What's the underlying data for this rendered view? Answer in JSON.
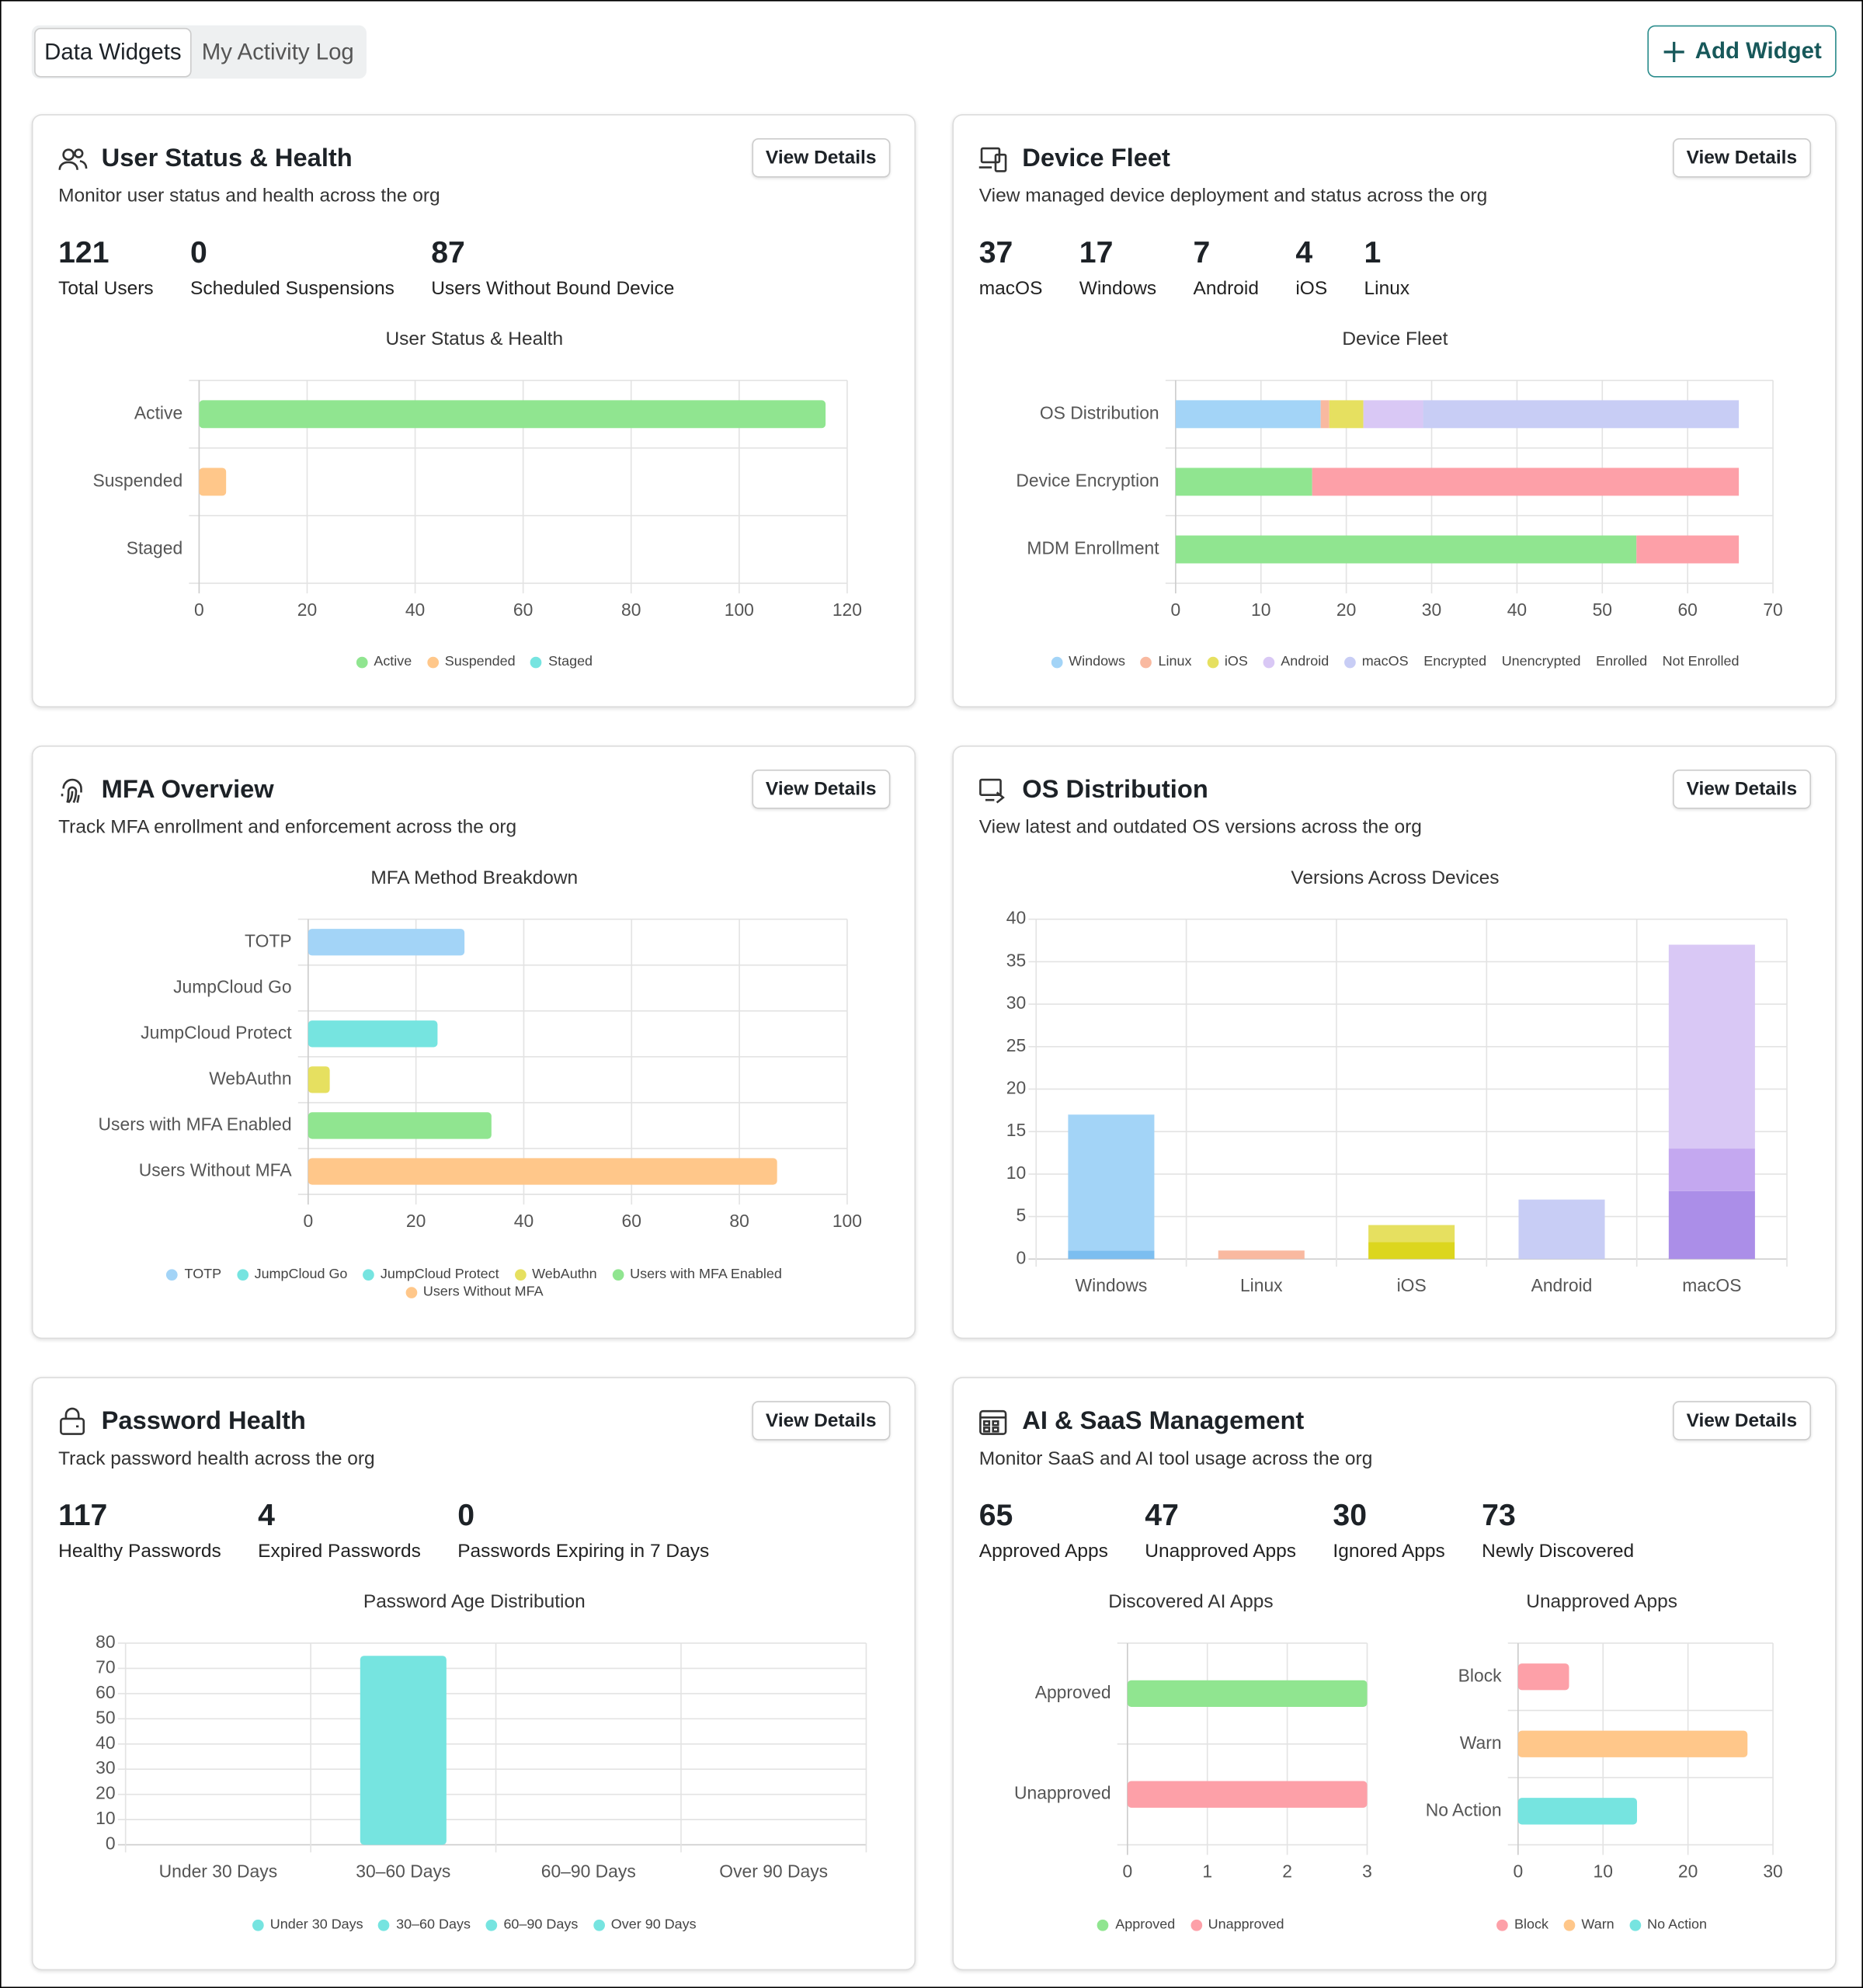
{
  "tabs": [
    "Data Widgets",
    "My Activity Log"
  ],
  "active_tab": 0,
  "add_widget": "Add Widget",
  "widgets": [
    {
      "title": "User Status & Health",
      "subtitle": "Monitor user status and health across the org",
      "action": "View Details",
      "stats": [
        {
          "value": 121,
          "label": "Total Users"
        },
        {
          "value": 0,
          "label": "Scheduled Suspensions"
        },
        {
          "value": 87,
          "label": "Users Without Bound Device"
        }
      ],
      "charts": [
        {
          "type": "bar",
          "orientation": "horizontal",
          "title": "User Status & Health",
          "categories": [
            "Active",
            "Suspended",
            "Staged"
          ],
          "values": [
            116,
            5,
            0
          ],
          "colors": [
            "#90e590",
            "#ffc78a",
            "#76e4e0"
          ],
          "xlim": [
            0,
            120
          ],
          "xticks": [
            0,
            20,
            40,
            60,
            80,
            100,
            120
          ],
          "legend": true
        }
      ]
    },
    {
      "title": "Device Fleet",
      "subtitle": "View managed device deployment and status across the org",
      "action": "View Details",
      "stats": [
        {
          "value": 37,
          "label": "macOS"
        },
        {
          "value": 17,
          "label": "Windows"
        },
        {
          "value": 7,
          "label": "Android"
        },
        {
          "value": 4,
          "label": "iOS"
        },
        {
          "value": 1,
          "label": "Linux"
        }
      ],
      "charts": [
        {
          "type": "stacked_bar",
          "orientation": "horizontal",
          "title": "Device Fleet",
          "categories": [
            "OS Distribution",
            "Device Encryption",
            "MDM Enrollment"
          ],
          "series": [
            {
              "name": "Windows",
              "color": "#a3d4f7",
              "values": [
                17,
                null,
                null
              ],
              "legend_marker": true
            },
            {
              "name": "Linux",
              "color": "#f9b9a0",
              "values": [
                1,
                null,
                null
              ],
              "legend_marker": true
            },
            {
              "name": "iOS",
              "color": "#e6e060",
              "values": [
                4,
                null,
                null
              ],
              "legend_marker": true
            },
            {
              "name": "Android",
              "color": "#d9c8f5",
              "values": [
                7,
                null,
                null
              ],
              "legend_marker": true
            },
            {
              "name": "macOS",
              "color": "#c8cdf5",
              "values": [
                37,
                null,
                null
              ],
              "legend_marker": true
            },
            {
              "name": "Encrypted",
              "color": "#90e590",
              "values": [
                null,
                16,
                null
              ],
              "legend_marker": false
            },
            {
              "name": "Unencrypted",
              "color": "#fda0a8",
              "values": [
                null,
                50,
                null
              ],
              "legend_marker": false
            },
            {
              "name": "Enrolled",
              "color": "#90e590",
              "values": [
                null,
                null,
                54
              ],
              "legend_marker": false
            },
            {
              "name": "Not Enrolled",
              "color": "#fda0a8",
              "values": [
                null,
                null,
                12
              ],
              "legend_marker": false
            }
          ],
          "xlim": [
            0,
            70
          ],
          "xticks": [
            0,
            10,
            20,
            30,
            40,
            50,
            60,
            70
          ],
          "legend": true
        }
      ]
    },
    {
      "title": "MFA Overview",
      "subtitle": "Track MFA enrollment and enforcement across the org",
      "action": "View Details",
      "charts": [
        {
          "type": "bar",
          "orientation": "horizontal",
          "title": "MFA Method Breakdown",
          "categories": [
            "TOTP",
            "JumpCloud Go",
            "JumpCloud Protect",
            "WebAuthn",
            "Users with MFA Enabled",
            "Users Without MFA"
          ],
          "values": [
            29,
            0,
            24,
            4,
            34,
            87
          ],
          "colors": [
            "#a3d4f7",
            "#76e4e0",
            "#76e4e0",
            "#e6e060",
            "#90e590",
            "#ffc78a"
          ],
          "xlim": [
            0,
            100
          ],
          "xticks": [
            0,
            20,
            40,
            60,
            80,
            100
          ],
          "legend": true
        }
      ]
    },
    {
      "title": "OS Distribution",
      "subtitle": "View latest and outdated OS versions across the org",
      "action": "View Details",
      "charts": [
        {
          "type": "stacked_bar",
          "orientation": "vertical",
          "title": "Versions Across Devices",
          "categories": [
            "Windows",
            "Linux",
            "iOS",
            "Android",
            "macOS"
          ],
          "segments": [
            [
              1,
              16
            ],
            [
              1
            ],
            [
              2,
              2
            ],
            [
              7
            ],
            [
              8,
              5,
              24
            ]
          ],
          "segment_colors": [
            [
              "#7cbef0",
              "#a3d4f7"
            ],
            [
              "#f9b9a0"
            ],
            [
              "#dcd61e",
              "#e6e060"
            ],
            [
              "#c8cdf5"
            ],
            [
              "#ab8ee8",
              "#c4a8f0",
              "#d9c8f5"
            ]
          ],
          "ylim": [
            0,
            40
          ],
          "yticks": [
            0,
            5,
            10,
            15,
            20,
            25,
            30,
            35,
            40
          ],
          "legend": false
        }
      ]
    },
    {
      "title": "Password Health",
      "subtitle": "Track password health across the org",
      "action": "View Details",
      "stats": [
        {
          "value": 117,
          "label": "Healthy Passwords"
        },
        {
          "value": 4,
          "label": "Expired Passwords"
        },
        {
          "value": 0,
          "label": "Passwords Expiring in 7 Days"
        }
      ],
      "charts": [
        {
          "type": "bar",
          "orientation": "vertical",
          "title": "Password Age Distribution",
          "categories": [
            "Under 30 Days",
            "30–60 Days",
            "60–90 Days",
            "Over 90 Days"
          ],
          "values": [
            0,
            75,
            0,
            0
          ],
          "colors": [
            "#76e4e0",
            "#76e4e0",
            "#76e4e0",
            "#76e4e0"
          ],
          "ylim": [
            0,
            80
          ],
          "yticks": [
            0,
            10,
            20,
            30,
            40,
            50,
            60,
            70,
            80
          ],
          "legend": true
        }
      ]
    },
    {
      "title": "AI & SaaS Management",
      "subtitle": "Monitor SaaS and AI tool usage across the org",
      "action": "View Details",
      "stats": [
        {
          "value": 65,
          "label": "Approved Apps"
        },
        {
          "value": 47,
          "label": "Unapproved Apps"
        },
        {
          "value": 30,
          "label": "Ignored Apps"
        },
        {
          "value": 73,
          "label": "Newly Discovered"
        }
      ],
      "charts": [
        {
          "type": "bar",
          "orientation": "horizontal",
          "title": "Discovered AI Apps",
          "categories": [
            "Approved",
            "Unapproved"
          ],
          "values": [
            3,
            3
          ],
          "colors": [
            "#90e590",
            "#fda0a8"
          ],
          "xlim": [
            0,
            3
          ],
          "xticks": [
            0,
            1,
            2,
            3
          ],
          "legend": true
        },
        {
          "type": "bar",
          "orientation": "horizontal",
          "title": "Unapproved Apps",
          "categories": [
            "Block",
            "Warn",
            "No Action"
          ],
          "values": [
            6,
            27,
            14
          ],
          "colors": [
            "#fda0a8",
            "#ffc78a",
            "#76e4e0"
          ],
          "xlim": [
            0,
            30
          ],
          "xticks": [
            0,
            10,
            20,
            30
          ],
          "legend": true
        }
      ]
    }
  ]
}
